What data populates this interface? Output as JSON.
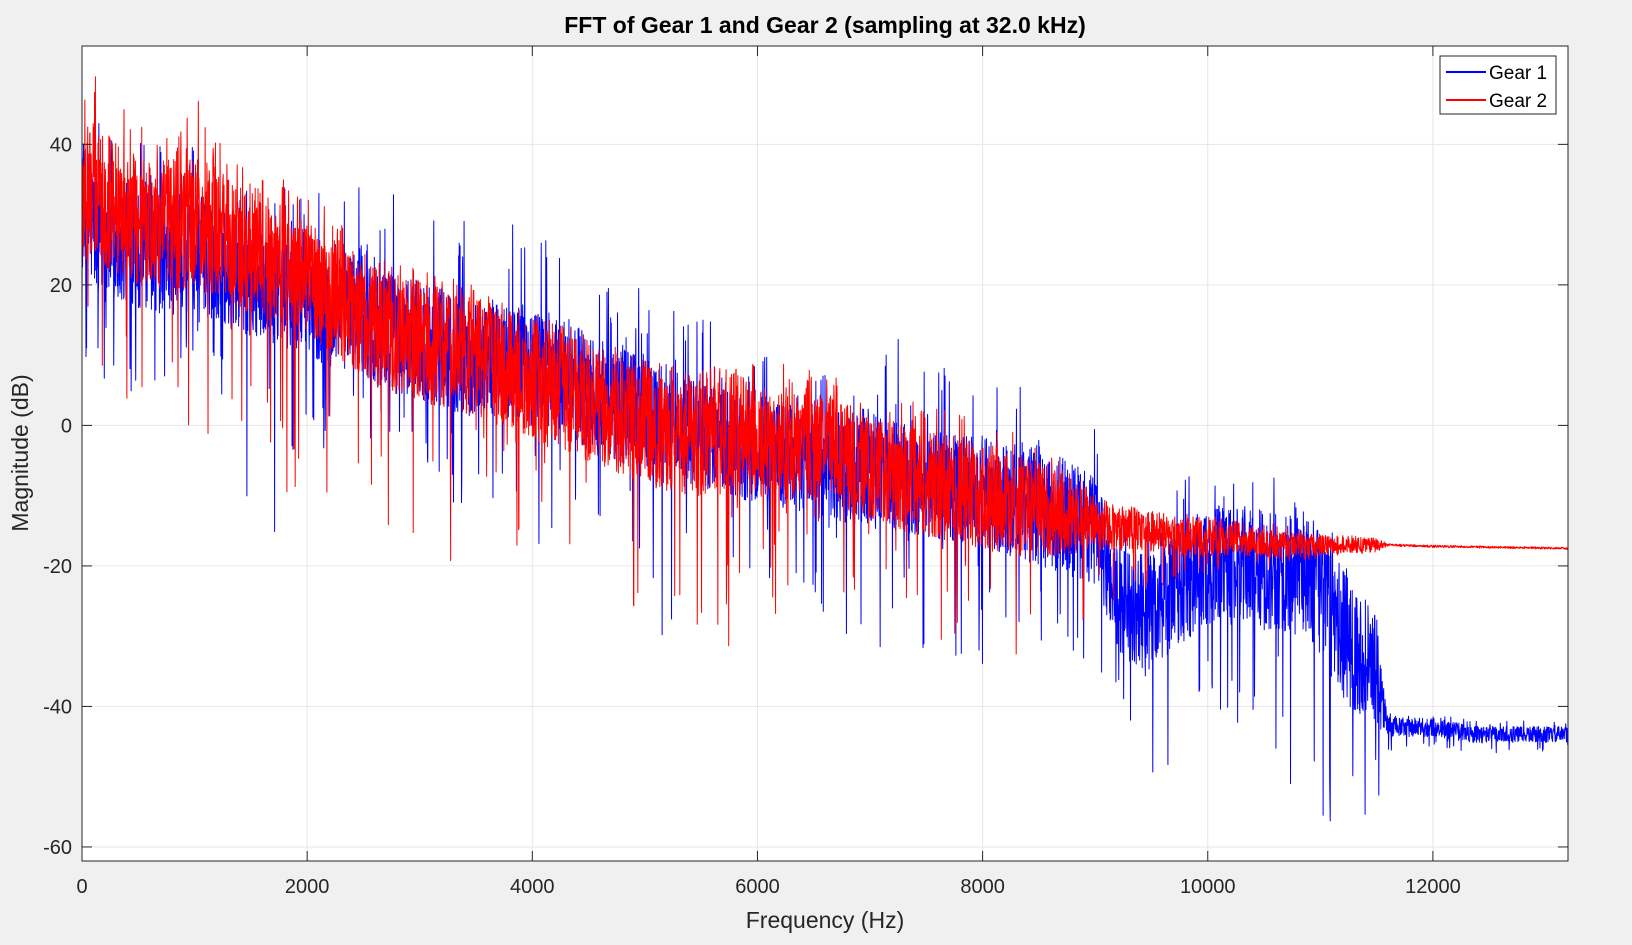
{
  "window": {
    "background": "#f0f0f0"
  },
  "chart_data": {
    "type": "line",
    "title": "FFT of Gear 1 and Gear 2 (sampling at 32.0 kHz)",
    "xlabel": "Frequency (Hz)",
    "ylabel": "Magnitude (dB)",
    "xlim": [
      0,
      13200
    ],
    "ylim": [
      -62,
      54
    ],
    "xticks": [
      0,
      2000,
      4000,
      6000,
      8000,
      10000,
      12000
    ],
    "xtick_labels": [
      "0",
      "2000",
      "4000",
      "6000",
      "8000",
      "10000",
      "12000"
    ],
    "yticks": [
      -60,
      -40,
      -20,
      0,
      20,
      40
    ],
    "ytick_labels": [
      "-60",
      "-40",
      "-20",
      "0",
      "20",
      "40"
    ],
    "grid": true,
    "legend_position": "top-right",
    "series": [
      {
        "name": "Gear 1",
        "color": "#0000ff",
        "x": [
          0,
          200,
          500,
          800,
          1000,
          1300,
          1600,
          2000,
          2200,
          2450,
          2600,
          3000,
          3400,
          3800,
          4200,
          4600,
          5000,
          5400,
          5800,
          6200,
          6600,
          7000,
          7400,
          7800,
          8200,
          8600,
          9000,
          9200,
          9500,
          9800,
          10000,
          10300,
          10600,
          10900,
          11000,
          11200,
          11400,
          11500,
          11600,
          12000,
          12400,
          12800,
          13200
        ],
        "center": [
          30,
          27,
          25,
          24,
          25,
          22,
          20,
          17,
          15,
          17,
          14,
          12,
          10,
          9,
          8,
          4,
          2,
          -1,
          -3,
          -4,
          -6,
          -6,
          -8,
          -9,
          -10,
          -12,
          -15,
          -25,
          -27,
          -22,
          -20,
          -20,
          -21,
          -22,
          -23,
          -30,
          -33,
          -35,
          -43,
          -43,
          -44,
          -44,
          -44
        ],
        "spread": [
          10,
          10,
          9,
          9,
          9,
          9,
          8,
          8,
          8,
          9,
          9,
          9,
          9,
          9,
          9,
          9,
          9,
          8,
          8,
          8,
          8,
          9,
          8,
          8,
          9,
          9,
          8,
          8,
          9,
          9,
          9,
          9,
          9,
          9,
          10,
          10,
          9,
          8,
          1.5,
          1.4,
          1.3,
          1.2,
          1.2
        ],
        "peaks": [
          45,
          44,
          42,
          43,
          42,
          38,
          35,
          33,
          34,
          39,
          35,
          31,
          30,
          29,
          28,
          23,
          19,
          17,
          14,
          10,
          10,
          14,
          12,
          9,
          7,
          6,
          1,
          -12,
          -12,
          -7,
          -8,
          -6,
          -6,
          -12,
          -11,
          -18,
          -25,
          -27,
          -41,
          -41,
          -42,
          -42,
          -42
        ],
        "troughs": [
          6,
          6,
          -5,
          4,
          7,
          3,
          -23,
          0,
          -5,
          0,
          -3,
          -8,
          -12,
          -15,
          -18,
          -20,
          -30,
          -30,
          -27,
          -25,
          -30,
          -37,
          -33,
          -35,
          -33,
          -35,
          -36,
          -40,
          -53,
          -48,
          -44,
          -46,
          -48,
          -62,
          -62,
          -62,
          -56,
          -55,
          -47,
          -46,
          -47,
          -47,
          -47
        ]
      },
      {
        "name": "Gear 2",
        "color": "#ff0000",
        "x": [
          0,
          100,
          300,
          600,
          1000,
          1400,
          1800,
          2200,
          2600,
          3000,
          3400,
          3800,
          4200,
          4600,
          5000,
          5400,
          5800,
          6200,
          6600,
          7000,
          7400,
          7800,
          8200,
          8600,
          9000,
          9400,
          9800,
          10200,
          10600,
          11000,
          11500,
          11600,
          12000,
          13200
        ],
        "center": [
          32,
          34,
          31,
          28,
          29,
          26,
          23,
          19,
          14,
          12,
          10,
          8,
          5,
          3,
          0,
          -2,
          -1,
          -3,
          -3,
          -6,
          -8,
          -9,
          -11,
          -12,
          -14,
          -15,
          -16,
          -16,
          -17,
          -17,
          -17,
          -17,
          -17.2,
          -17.5
        ],
        "spread": [
          11,
          11,
          10,
          10,
          10,
          10,
          9,
          9,
          9,
          9,
          9,
          9,
          9,
          9,
          9,
          9,
          9,
          8,
          8,
          8,
          8,
          8,
          8,
          7,
          4,
          3,
          3,
          2.5,
          2,
          1.5,
          1,
          0.15,
          0.15,
          0.15
        ],
        "peaks": [
          47,
          52,
          46,
          44,
          47,
          38,
          35,
          31,
          24,
          23,
          21,
          17,
          15,
          12,
          10,
          9,
          8,
          10,
          8,
          4,
          4,
          4,
          0,
          -3,
          -10,
          -13,
          -12,
          -13,
          -14,
          -15,
          -16,
          -17,
          -17.2,
          -17.5
        ],
        "troughs": [
          15,
          10,
          5,
          1,
          -3,
          -6,
          -10,
          -12,
          -20,
          -22,
          -20,
          -21,
          -22,
          -20,
          -30,
          -34,
          -31,
          -28,
          -26,
          -30,
          -30,
          -32,
          -33,
          -33,
          -30,
          -25,
          -22,
          -21,
          -20,
          -19,
          -18,
          -17.2,
          -17.4,
          -17.7
        ]
      }
    ]
  }
}
